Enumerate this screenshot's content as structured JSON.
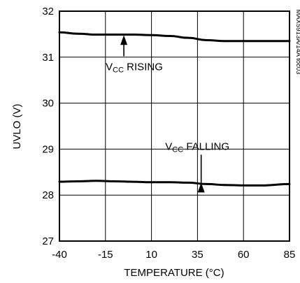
{
  "chart_data": {
    "type": "line",
    "xlabel": "TEMPERATURE (°C)",
    "ylabel": "UVLO (V)",
    "side_label": "MAX5913A/14A toc03",
    "xlim": [
      -40,
      85
    ],
    "ylim": [
      27,
      32
    ],
    "x_ticks": [
      -40,
      -15,
      10,
      35,
      60,
      85
    ],
    "y_ticks": [
      27,
      28,
      29,
      30,
      31,
      32
    ],
    "grid": true,
    "series": [
      {
        "name": "VCC RISING",
        "x": [
          -40,
          -30,
          -20,
          -10,
          0,
          10,
          20,
          30,
          40,
          50,
          60,
          70,
          85
        ],
        "y": [
          31.54,
          31.51,
          31.49,
          31.49,
          31.49,
          31.48,
          31.46,
          31.42,
          31.37,
          31.35,
          31.35,
          31.35,
          31.35
        ]
      },
      {
        "name": "VCC FALLING",
        "x": [
          -40,
          -30,
          -20,
          -10,
          0,
          10,
          20,
          30,
          40,
          50,
          60,
          70,
          85
        ],
        "y": [
          28.29,
          28.3,
          28.31,
          28.3,
          28.29,
          28.28,
          28.28,
          28.27,
          28.24,
          28.22,
          28.21,
          28.21,
          28.24
        ]
      }
    ],
    "annotations": [
      {
        "sub_main": "V",
        "sub": "CC",
        "text": " RISING",
        "arrow_x": -5,
        "arrow_from_y": 31.02,
        "arrow_to_y": 31.48
      },
      {
        "sub_main": "V",
        "sub": "CC",
        "text": " FALLING",
        "arrow_x": 37,
        "arrow_from_y": 28.88,
        "arrow_to_y": 28.27
      }
    ]
  }
}
